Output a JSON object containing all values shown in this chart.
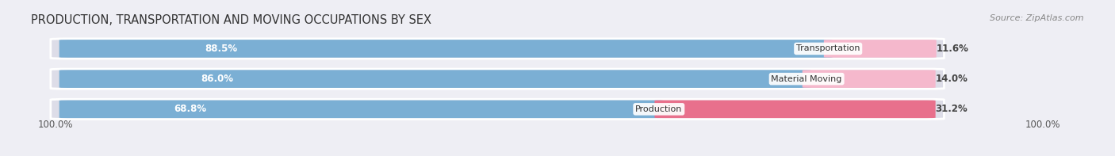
{
  "title": "PRODUCTION, TRANSPORTATION AND MOVING OCCUPATIONS BY SEX",
  "source": "Source: ZipAtlas.com",
  "categories": [
    "Transportation",
    "Material Moving",
    "Production"
  ],
  "male_values": [
    88.5,
    86.0,
    68.8
  ],
  "female_values": [
    11.6,
    14.0,
    31.2
  ],
  "male_color": "#7bafd4",
  "female_color_transport": "#f5b8cc",
  "female_color_material": "#f5b8cc",
  "female_color_production": "#e8708c",
  "background_color": "#eeeef4",
  "bar_bg_color": "#dddde8",
  "title_fontsize": 10.5,
  "source_fontsize": 8,
  "label_fontsize": 8.5,
  "tick_fontsize": 8.5,
  "legend_fontsize": 9,
  "left_label": "100.0%",
  "right_label": "100.0%"
}
